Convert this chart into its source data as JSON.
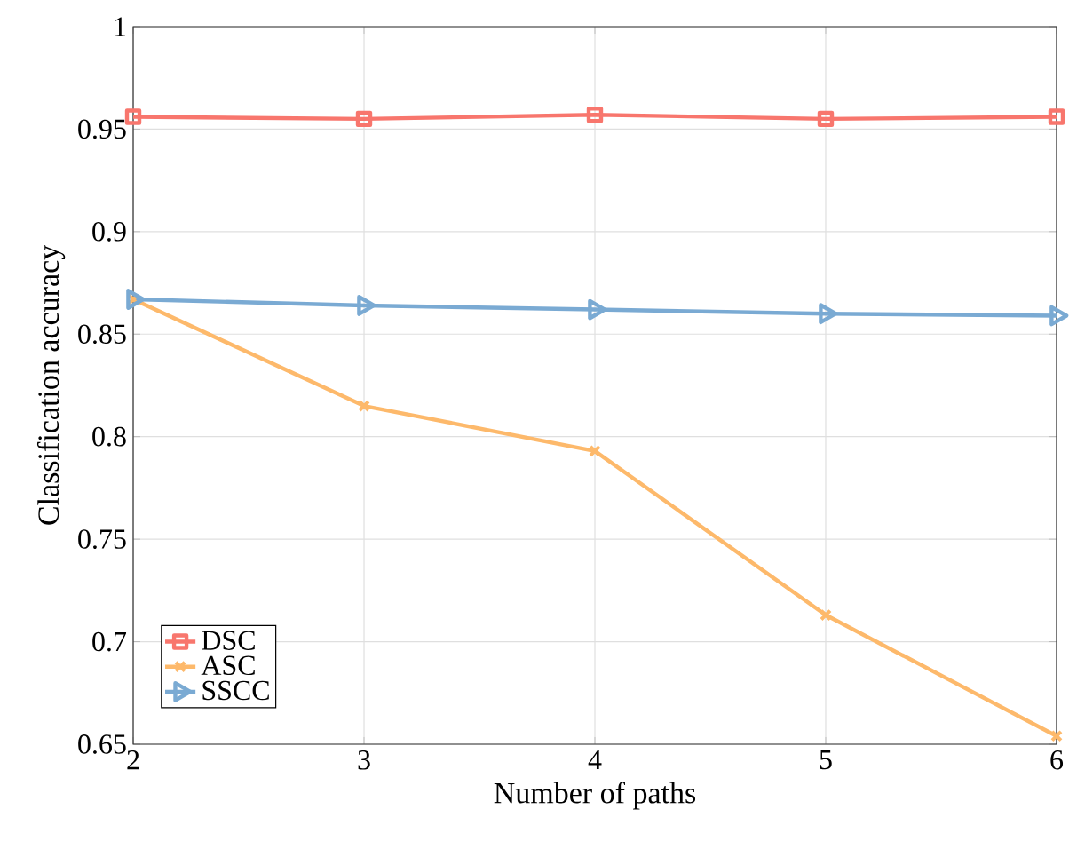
{
  "chart_data": {
    "type": "line",
    "xlabel": "Number of paths",
    "ylabel": "Classification accuracy",
    "x": [
      2,
      3,
      4,
      5,
      6
    ],
    "series": [
      {
        "name": "DSC",
        "color": "#f8766d",
        "marker": "square",
        "values": [
          0.956,
          0.955,
          0.957,
          0.955,
          0.956
        ]
      },
      {
        "name": "ASC",
        "color": "#fdb96b",
        "marker": "cross",
        "values": [
          0.867,
          0.815,
          0.793,
          0.713,
          0.654
        ]
      },
      {
        "name": "SSCC",
        "color": "#7aaad3",
        "marker": "triangle",
        "values": [
          0.867,
          0.864,
          0.862,
          0.86,
          0.859
        ]
      }
    ],
    "xlim": [
      2,
      6
    ],
    "xticks": [
      2,
      3,
      4,
      5,
      6
    ],
    "ylim": [
      0.65,
      1
    ],
    "yticks": [
      0.65,
      0.7,
      0.75,
      0.8,
      0.85,
      0.9,
      0.95,
      1
    ],
    "grid": true,
    "legend": "bottom left",
    "line_style": "solid"
  }
}
